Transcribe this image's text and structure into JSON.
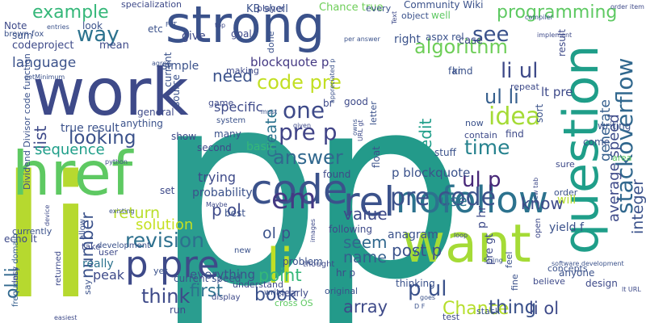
{
  "words": [
    {
      "text": "p",
      "color": "#2a9d8f"
    },
    {
      "text": "p",
      "color": "#239a8a"
    },
    {
      "text": "li",
      "color": "#b6d92f"
    },
    {
      "text": "strong",
      "color": "#3b528b"
    },
    {
      "text": "work",
      "color": "#3e4a89"
    },
    {
      "text": "href",
      "color": "#5ec962"
    },
    {
      "text": "want",
      "color": "#a5db36"
    },
    {
      "text": "question",
      "color": "#1f9e89"
    },
    {
      "text": "li",
      "color": "#c0df25"
    },
    {
      "text": "code",
      "color": "#3b528b"
    },
    {
      "text": "nofollow",
      "color": "#2c728e"
    },
    {
      "text": "rel",
      "color": "#3b528b"
    },
    {
      "text": "p pre",
      "color": "#3e4a89"
    },
    {
      "text": "em",
      "color": "#443983"
    },
    {
      "text": "example",
      "color": "#35b779"
    },
    {
      "text": "way",
      "color": "#2c728e"
    },
    {
      "text": "algorithm",
      "color": "#6ece58"
    },
    {
      "text": "language",
      "color": "#3b528b"
    },
    {
      "text": "code pre",
      "color": "#c2df23"
    },
    {
      "text": "one",
      "color": "#3e4a89"
    },
    {
      "text": "pre p",
      "color": "#414487"
    },
    {
      "text": "looking",
      "color": "#3b528b"
    },
    {
      "text": "answer",
      "color": "#31688e"
    },
    {
      "text": "pre code",
      "color": "#3b528b"
    },
    {
      "text": "ul p",
      "color": "#482878"
    },
    {
      "text": "time",
      "color": "#26828e"
    },
    {
      "text": "idea",
      "color": "#a5db36"
    },
    {
      "text": "li ul",
      "color": "#3e4a89"
    },
    {
      "text": "ul li",
      "color": "#355f8d"
    },
    {
      "text": "see",
      "color": "#3b528b"
    },
    {
      "text": "programming",
      "color": "#5ec962"
    },
    {
      "text": "stackoverflow",
      "color": "#31688e"
    },
    {
      "text": "revision",
      "color": "#2d708e"
    },
    {
      "text": "number",
      "color": "#3b528b"
    },
    {
      "text": "think",
      "color": "#3e4a89"
    },
    {
      "text": "p ul",
      "color": "#3b528b"
    },
    {
      "text": "return",
      "color": "#b8de29"
    },
    {
      "text": "solution",
      "color": "#c5e021"
    },
    {
      "text": "list",
      "color": "#3e4a89"
    },
    {
      "text": "sequence",
      "color": "#1f9e89"
    },
    {
      "text": "need",
      "color": "#3b528b"
    },
    {
      "text": "value",
      "color": "#3e4a89"
    },
    {
      "text": "book",
      "color": "#3b528b"
    },
    {
      "text": "point",
      "color": "#35b779"
    },
    {
      "text": "first",
      "color": "#2c728e"
    },
    {
      "text": "array",
      "color": "#3e4a89"
    },
    {
      "text": "Chance",
      "color": "#b5de2b"
    },
    {
      "text": "thing",
      "color": "#3b528b"
    },
    {
      "text": "li ol",
      "color": "#3e4a89"
    },
    {
      "text": "seem",
      "color": "#31688e"
    },
    {
      "text": "name",
      "color": "#355f8d"
    },
    {
      "text": "post p",
      "color": "#3b528b"
    },
    {
      "text": "know",
      "color": "#3e4a89"
    },
    {
      "text": "use",
      "color": "#2c728e"
    },
    {
      "text": "edit",
      "color": "#1f9e89"
    },
    {
      "text": "ol li",
      "color": "#31688e"
    },
    {
      "text": "p ol",
      "color": "#3e4a89"
    },
    {
      "text": "ol p",
      "color": "#3b528b"
    },
    {
      "text": "create",
      "color": "#2c728e"
    },
    {
      "text": "integer",
      "color": "#3b528b"
    },
    {
      "text": "average speed",
      "color": "#3e4a89"
    },
    {
      "text": "generate",
      "color": "#355f8d"
    },
    {
      "text": "true result",
      "color": "#3b528b"
    },
    {
      "text": "specific",
      "color": "#3e4a89"
    },
    {
      "text": "blockquote p",
      "color": "#443983"
    },
    {
      "text": "simple",
      "color": "#3b528b"
    },
    {
      "text": "give",
      "color": "#3e4a89"
    },
    {
      "text": "probability",
      "color": "#3b528b"
    },
    {
      "text": "trying",
      "color": "#3e4a89"
    },
    {
      "text": "p blockquote",
      "color": "#3b528b"
    },
    {
      "text": "lt pre",
      "color": "#3e4a89"
    },
    {
      "text": "yield f",
      "color": "#3b528b"
    },
    {
      "text": "echo lt",
      "color": "#3e4a89"
    },
    {
      "text": "Dividend Divisor code function",
      "color": "#3b528b"
    },
    {
      "text": "frequency domain",
      "color": "#355f8d"
    },
    {
      "text": "anagram",
      "color": "#3b528b"
    },
    {
      "text": "peak",
      "color": "#3e4a89"
    },
    {
      "text": "everything",
      "color": "#3b528b"
    },
    {
      "text": "really",
      "color": "#2c728e"
    },
    {
      "text": "KB shell",
      "color": "#3b528b"
    },
    {
      "text": "Chance true",
      "color": "#6ece58"
    },
    {
      "text": "Community Wiki",
      "color": "#3b528b"
    },
    {
      "text": "specialization",
      "color": "#3e4a89"
    },
    {
      "text": "aspx rel",
      "color": "#3b528b"
    },
    {
      "text": "codeproject",
      "color": "#3e4a89"
    },
    {
      "text": "sum",
      "color": "#3b528b"
    },
    {
      "text": "mean",
      "color": "#3e4a89"
    },
    {
      "text": "look",
      "color": "#3b528b"
    },
    {
      "text": "Note",
      "color": "#3e4a89"
    },
    {
      "text": "brown fox",
      "color": "#3b528b"
    },
    {
      "text": "kind",
      "color": "#3b528b"
    },
    {
      "text": "result",
      "color": "#3e4a89"
    },
    {
      "text": "right",
      "color": "#3b528b"
    },
    {
      "text": "case",
      "color": "#3e4a89"
    },
    {
      "text": "far",
      "color": "#3b528b"
    },
    {
      "text": "well",
      "color": "#5ec962"
    },
    {
      "text": "object",
      "color": "#3b528b"
    },
    {
      "text": "player",
      "color": "#3e4a89"
    },
    {
      "text": "every",
      "color": "#3b528b"
    },
    {
      "text": "goal",
      "color": "#3e4a89"
    },
    {
      "text": "done",
      "color": "#3b528b"
    },
    {
      "text": "making",
      "color": "#3e4a89"
    },
    {
      "text": "etc",
      "color": "#3b528b"
    },
    {
      "text": "br",
      "color": "#3e4a89"
    },
    {
      "text": "basic",
      "color": "#35b779"
    },
    {
      "text": "current",
      "color": "#3b528b"
    },
    {
      "text": "general",
      "color": "#3e4a89"
    },
    {
      "text": "anything",
      "color": "#3b528b"
    },
    {
      "text": "second",
      "color": "#3e4a89"
    },
    {
      "text": "many",
      "color": "#3b528b"
    },
    {
      "text": "show",
      "color": "#3e4a89"
    },
    {
      "text": "source",
      "color": "#3b528b"
    },
    {
      "text": "game",
      "color": "#3e4a89"
    },
    {
      "text": "system",
      "color": "#3b528b"
    },
    {
      "text": "good",
      "color": "#3e4a89"
    },
    {
      "text": "letter",
      "color": "#3b528b"
    },
    {
      "text": "find",
      "color": "#3e4a89"
    },
    {
      "text": "sort",
      "color": "#3b528b"
    },
    {
      "text": "contain",
      "color": "#3e4a89"
    },
    {
      "text": "now",
      "color": "#3b528b"
    },
    {
      "text": "repeat",
      "color": "#3e4a89"
    },
    {
      "text": "writing",
      "color": "#3b528b"
    },
    {
      "text": "sure",
      "color": "#3e4a89"
    },
    {
      "text": "come",
      "color": "#3b528b"
    },
    {
      "text": "area",
      "color": "#5ec962"
    },
    {
      "text": "order",
      "color": "#3b528b"
    },
    {
      "text": "will",
      "color": "#b5de2b"
    },
    {
      "text": "p hr",
      "color": "#3e4a89"
    },
    {
      "text": "stuff",
      "color": "#3b528b"
    },
    {
      "text": "found",
      "color": "#3e4a89"
    },
    {
      "text": "float",
      "color": "#3b528b"
    },
    {
      "text": "set",
      "color": "#3e4a89"
    },
    {
      "text": "best",
      "color": "#3b528b"
    },
    {
      "text": "following",
      "color": "#3e4a89"
    },
    {
      "text": "problem",
      "color": "#3b528b"
    },
    {
      "text": "hr p",
      "color": "#3e4a89"
    },
    {
      "text": "original",
      "color": "#3b528b"
    },
    {
      "text": "clearly",
      "color": "#3e4a89"
    },
    {
      "text": "cross OS",
      "color": "#5ec962"
    },
    {
      "text": "thinking",
      "color": "#3b528b"
    },
    {
      "text": "pre gt",
      "color": "#3e4a89"
    },
    {
      "text": "feel",
      "color": "#3b528b"
    },
    {
      "text": "believe",
      "color": "#3e4a89"
    },
    {
      "text": "concepts",
      "color": "#3b528b"
    },
    {
      "text": "design",
      "color": "#3e4a89"
    },
    {
      "text": "anyone",
      "color": "#3b528b"
    },
    {
      "text": "open",
      "color": "#3e4a89"
    },
    {
      "text": "fine",
      "color": "#3b528b"
    },
    {
      "text": "test",
      "color": "#3e4a89"
    },
    {
      "text": "stack",
      "color": "#3b528b"
    },
    {
      "text": "run",
      "color": "#3e4a89"
    },
    {
      "text": "current speed",
      "color": "#3b528b"
    },
    {
      "text": "understand",
      "color": "#3e4a89"
    },
    {
      "text": "write",
      "color": "#3b528b"
    },
    {
      "text": "display",
      "color": "#3e4a89"
    },
    {
      "text": "say",
      "color": "#3b528b"
    },
    {
      "text": "take",
      "color": "#3e4a89"
    },
    {
      "text": "yet",
      "color": "#3b528b"
    },
    {
      "text": "user",
      "color": "#3e4a89"
    },
    {
      "text": "allow",
      "color": "#3b528b"
    },
    {
      "text": "less",
      "color": "#3e4a89"
    },
    {
      "text": "currently",
      "color": "#3b528b"
    },
    {
      "text": "returned",
      "color": "#3e4a89"
    },
    {
      "text": "development",
      "color": "#3b528b"
    },
    {
      "text": "thought",
      "color": "#3e4a89"
    },
    {
      "text": "new",
      "color": "#3b528b"
    },
    {
      "text": "images",
      "color": "#3e4a89"
    },
    {
      "text": "goes",
      "color": "#3b528b"
    },
    {
      "text": "loop",
      "color": "#3e4a89"
    },
    {
      "text": "String",
      "color": "#3b528b"
    },
    {
      "text": "lt URL",
      "color": "#3e4a89"
    },
    {
      "text": "software development",
      "color": "#3b528b"
    },
    {
      "text": "new tab",
      "color": "#3e4a89"
    },
    {
      "text": "appreciated p",
      "color": "#3b528b"
    },
    {
      "text": "given",
      "color": "#3e4a89"
    },
    {
      "text": "must",
      "color": "#3b528b"
    },
    {
      "text": "Maybe",
      "color": "#3e4a89"
    },
    {
      "text": "existing",
      "color": "#3b528b"
    },
    {
      "text": "device",
      "color": "#3e4a89"
    },
    {
      "text": "getMinimum",
      "color": "#3b528b"
    },
    {
      "text": "python",
      "color": "#3e4a89"
    },
    {
      "text": "agree",
      "color": "#3b528b"
    },
    {
      "text": "order item",
      "color": "#3e4a89"
    },
    {
      "text": "compiler",
      "color": "#3b528b"
    },
    {
      "text": "implement",
      "color": "#3e4a89"
    },
    {
      "text": "per answer",
      "color": "#3b528b"
    },
    {
      "text": "Text",
      "color": "#3e4a89"
    },
    {
      "text": "FFT",
      "color": "#3b528b"
    },
    {
      "text": "top",
      "color": "#3e4a89"
    },
    {
      "text": "entries",
      "color": "#3b528b"
    },
    {
      "text": "easiest",
      "color": "#3e4a89"
    },
    {
      "text": "D F",
      "color": "#3b528b"
    },
    {
      "text": "URL gt",
      "color": "#3e4a89"
    },
    {
      "text": "owns",
      "color": "#3b528b"
    },
    {
      "text": "type",
      "color": "#3e4a89"
    },
    {
      "text": "Interface",
      "color": "#3b528b"
    }
  ]
}
